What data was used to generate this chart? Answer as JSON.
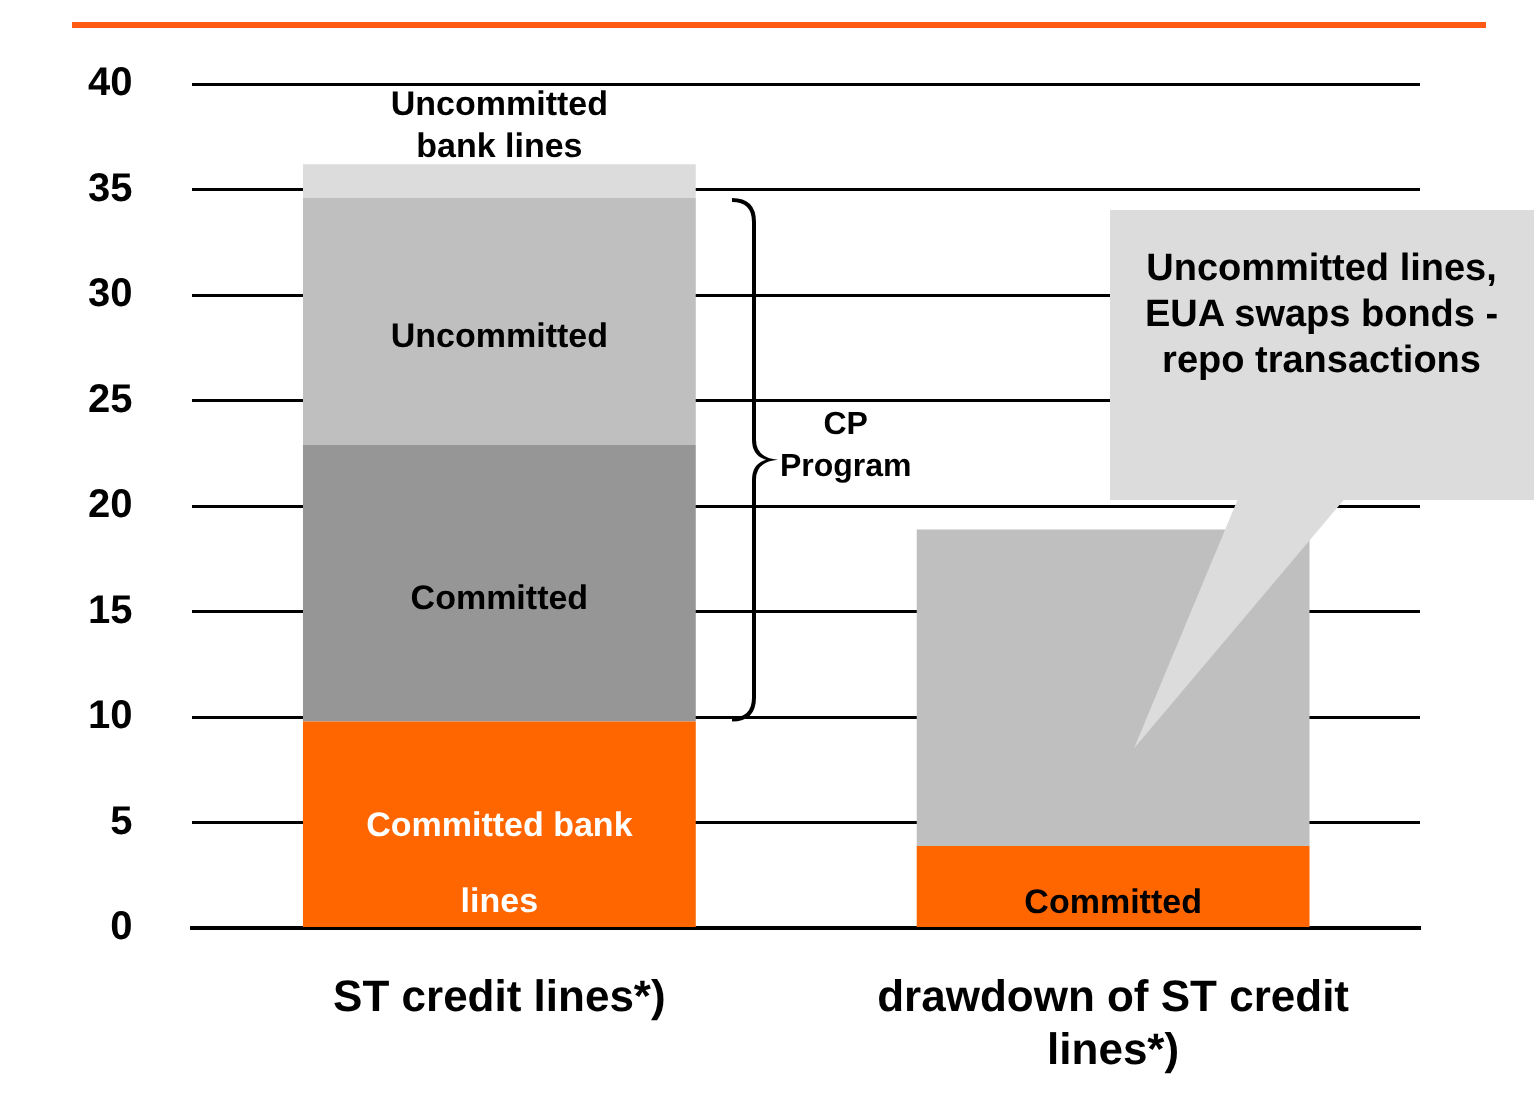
{
  "chart_data": {
    "type": "bar",
    "stacked": true,
    "categories": [
      "ST credit lines*)",
      "drawdown of ST credit lines*)"
    ],
    "series": [
      {
        "color": "#ff6600",
        "values": [
          9.8,
          3.9
        ]
      },
      {
        "color": "#969696",
        "values": [
          13.1,
          null
        ]
      },
      {
        "color": "#bfbfbf",
        "values": [
          11.7,
          15.0
        ]
      },
      {
        "color": "#dcdcdc",
        "values": [
          1.6,
          null
        ]
      }
    ],
    "ylim": [
      0,
      40
    ],
    "yticks": [
      0,
      5,
      10,
      15,
      20,
      25,
      30,
      35,
      40
    ],
    "grid": "y",
    "legend": false,
    "annotations": [
      "Uncommitted bank lines",
      "Uncommitted",
      "Committed",
      "Committed bank lines",
      "Uncommitted lines, EUA swaps bonds - repo transactions",
      "Committed",
      "CP Program"
    ]
  }
}
